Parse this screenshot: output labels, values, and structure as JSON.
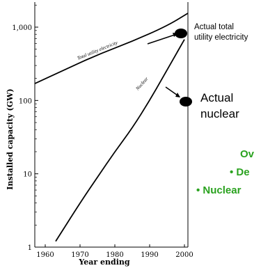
{
  "chart_data": {
    "type": "line",
    "title": "",
    "xlabel": "Year ending",
    "ylabel": "Installed capacity (GW)",
    "xlim": [
      1957,
      2001
    ],
    "ylim": [
      1,
      2000
    ],
    "y_scale": "log",
    "x_ticks": [
      "1960",
      "1970",
      "1980",
      "1990",
      "2000"
    ],
    "y_ticks": [
      "1",
      "10",
      "100",
      "1,000"
    ],
    "series": [
      {
        "name": "Total utility electricity",
        "x": [
          1957,
          1965,
          1975,
          1985,
          1995,
          2001
        ],
        "y": [
          170,
          255,
          420,
          640,
          1040,
          1550
        ]
      },
      {
        "name": "Nuclear",
        "x": [
          1963,
          1970,
          1975,
          1980,
          1985,
          1990,
          1995,
          2000
        ],
        "y": [
          1.2,
          4,
          9,
          20,
          42,
          100,
          260,
          680
        ]
      }
    ],
    "actual_points": [
      {
        "label": "Actual total utility electricity",
        "x": 2000,
        "y": 780
      },
      {
        "label": "Actual nuclear",
        "x": 2000,
        "y": 95
      }
    ],
    "annotations": {
      "actual_total_line1": "Actual total",
      "actual_total_line2": "utility electricity",
      "actual_nuclear_line1": "Actual",
      "actual_nuclear_line2": "nuclear"
    },
    "bullets": [
      "Ov",
      "• De",
      "• Nuclear"
    ]
  }
}
